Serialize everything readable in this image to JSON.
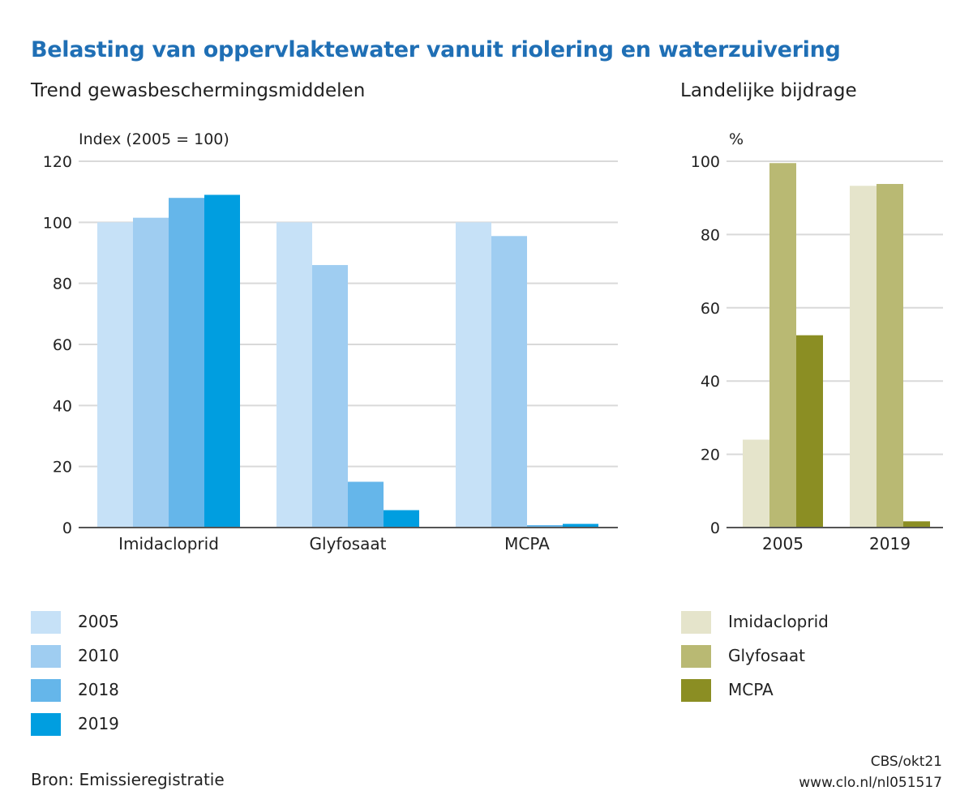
{
  "header": {
    "title": "Belasting van oppervlaktewater vanuit riolering en waterzuivering"
  },
  "chart_data": [
    {
      "type": "bar",
      "title": "Trend gewasbeschermingsmiddelen",
      "ylabel": "Index (2005 = 100)",
      "xlabel": "",
      "ylim": [
        0,
        120
      ],
      "yticks": [
        0,
        20,
        40,
        60,
        80,
        100,
        120
      ],
      "grid": true,
      "legend_position": "bottom-left",
      "categories": [
        "Imidacloprid",
        "Glyfosaat",
        "MCPA"
      ],
      "series": [
        {
          "name": "2005",
          "color": "#c6e1f7",
          "values": [
            100,
            100,
            100
          ]
        },
        {
          "name": "2010",
          "color": "#9fcdf1",
          "values": [
            101.5,
            86,
            95.5
          ]
        },
        {
          "name": "2018",
          "color": "#65b6ea",
          "values": [
            108,
            15,
            0.8
          ]
        },
        {
          "name": "2019",
          "color": "#009ee0",
          "values": [
            109,
            5.7,
            1.2
          ]
        }
      ]
    },
    {
      "type": "bar",
      "title": "Landelijke bijdrage",
      "ylabel": "%",
      "xlabel": "",
      "ylim": [
        0,
        100
      ],
      "yticks": [
        0,
        20,
        40,
        60,
        80,
        100
      ],
      "grid": true,
      "legend_position": "bottom-left",
      "categories": [
        "2005",
        "2019"
      ],
      "series": [
        {
          "name": "Imidacloprid",
          "color": "#e5e4cb",
          "values": [
            24,
            93.3
          ]
        },
        {
          "name": "Glyfosaat",
          "color": "#b9b973",
          "values": [
            99.5,
            93.8
          ]
        },
        {
          "name": "MCPA",
          "color": "#8b8e23",
          "values": [
            52.5,
            1.7
          ]
        }
      ]
    }
  ],
  "footer": {
    "source": "Bron: Emissieregistratie",
    "credit_line1": "CBS/okt21",
    "credit_line2": "www.clo.nl/nl051517"
  }
}
